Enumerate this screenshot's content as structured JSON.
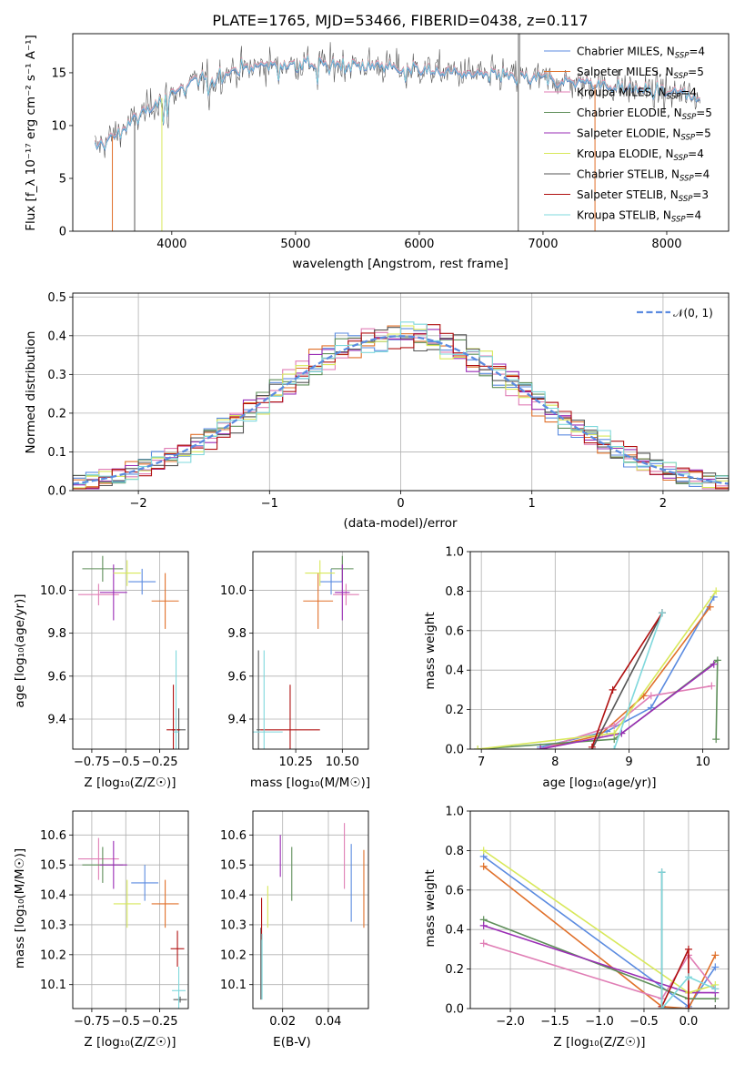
{
  "title": "PLATE=1765, MJD=53466, FIBERID=0438, z=0.117",
  "colors": {
    "Chabrier MILES": "#5b8be0",
    "Salpeter MILES": "#e0702a",
    "Kroupa MILES": "#e07eb5",
    "Chabrier ELODIE": "#5f8f5a",
    "Salpeter ELODIE": "#9a2cb5",
    "Kroupa ELODIE": "#d8e85a",
    "Chabrier STELIB": "#555555",
    "Salpeter STELIB": "#b01010",
    "Kroupa STELIB": "#7fd8dc",
    "normal": "#5b8be0",
    "grid": "#b0b0b0"
  },
  "panels": {
    "spectrum": {
      "xlabel": "wavelength [Angstrom, rest frame]",
      "ylabel": "Flux [f_λ 10⁻¹⁷ erg cm⁻² s⁻¹ A⁻¹]",
      "legend": [
        {
          "name": "Chabrier MILES, N",
          "sub": "SSP",
          "eq": "=4"
        },
        {
          "name": "Salpeter MILES, N",
          "sub": "SSP",
          "eq": "=5"
        },
        {
          "name": "Kroupa MILES, N",
          "sub": "SSP",
          "eq": "=4"
        },
        {
          "name": "Chabrier ELODIE, N",
          "sub": "SSP",
          "eq": "=5"
        },
        {
          "name": "Salpeter ELODIE, N",
          "sub": "SSP",
          "eq": "=5"
        },
        {
          "name": "Kroupa ELODIE, N",
          "sub": "SSP",
          "eq": "=4"
        },
        {
          "name": "Chabrier STELIB, N",
          "sub": "SSP",
          "eq": "=4"
        },
        {
          "name": "Salpeter STELIB, N",
          "sub": "SSP",
          "eq": "=3"
        },
        {
          "name": "Kroupa STELIB, N",
          "sub": "SSP",
          "eq": "=4"
        }
      ]
    },
    "hist": {
      "xlabel": "(data-model)/error",
      "ylabel": "Normed distribution",
      "legend_label": "𝒩(0, 1)"
    },
    "age_z": {
      "xlabel": "Z [log₁₀(Z/Z☉)]",
      "ylabel": "age  [log₁₀(age/yr)]"
    },
    "age_mass": {
      "xlabel": "mass [log₁₀(M/M☉)]"
    },
    "w_age": {
      "xlabel": "age  [log₁₀(age/yr)]",
      "ylabel": "mass weight"
    },
    "mass_z": {
      "xlabel": "Z [log₁₀(Z/Z☉)]",
      "ylabel": "mass [log₁₀(M/M☉)]"
    },
    "mass_ebv": {
      "xlabel": "E(B-V)"
    },
    "w_z": {
      "xlabel": "Z [log₁₀(Z/Z☉)]",
      "ylabel": "mass weight"
    }
  },
  "chart_data": [
    {
      "type": "line",
      "title": "PLATE=1765, MJD=53466, FIBERID=0438, z=0.117",
      "xlabel": "wavelength [Angstrom, rest frame]",
      "ylabel": "Flux [fλ 10^-17 erg cm^-2 s^-1 A^-1]",
      "xlim": [
        3200,
        8500
      ],
      "ylim": [
        0,
        18.7
      ],
      "xticks": [
        4000,
        5000,
        6000,
        7000,
        8000
      ],
      "yticks": [
        0,
        5,
        10,
        15
      ],
      "continuum": {
        "x": [
          3400,
          3700,
          3900,
          4200,
          4500,
          4800,
          5200,
          5600,
          6000,
          6500,
          7000,
          7500,
          8000,
          8250
        ],
        "y": [
          8.0,
          10.5,
          12.5,
          14.2,
          15.2,
          15.8,
          15.9,
          15.7,
          15.3,
          14.9,
          14.4,
          13.8,
          13.1,
          12.8
        ]
      },
      "series": [
        "Chabrier MILES",
        "Salpeter MILES",
        "Kroupa MILES",
        "Chabrier ELODIE",
        "Salpeter ELODIE",
        "Kroupa ELODIE",
        "Chabrier STELIB",
        "Salpeter STELIB",
        "Kroupa STELIB"
      ],
      "grid": false,
      "legend": "top-right"
    },
    {
      "type": "line",
      "xlabel": "(data-model)/error",
      "ylabel": "Normed distribution",
      "xlim": [
        -2.5,
        2.5
      ],
      "ylim": [
        0,
        0.51
      ],
      "xticks": [
        -2,
        -1,
        0,
        1,
        2
      ],
      "yticks": [
        0.0,
        0.1,
        0.2,
        0.3,
        0.4,
        0.5
      ],
      "bin_width": 0.1,
      "reference": {
        "name": "𝒩(0, 1)",
        "mean": 0,
        "sigma": 1
      },
      "grid": true,
      "legend": "top-right"
    },
    {
      "type": "scatter",
      "xlabel": "Z [log10(Z/Z_sun)]",
      "ylabel": "age [log10(age/yr)]",
      "xlim": [
        -0.89,
        -0.04
      ],
      "ylim": [
        9.26,
        10.18
      ],
      "xticks": [
        -0.75,
        -0.5,
        -0.25
      ],
      "yticks": [
        9.4,
        9.6,
        9.8,
        10.0
      ],
      "points": [
        {
          "s": "Chabrier MILES",
          "x": -0.38,
          "y": 10.04,
          "xe": 0.1,
          "ye": 0.06
        },
        {
          "s": "Salpeter MILES",
          "x": -0.21,
          "y": 9.95,
          "xe": 0.1,
          "ye": 0.13
        },
        {
          "s": "Kroupa MILES",
          "x": -0.7,
          "y": 9.98,
          "xe": 0.15,
          "ye": 0.05
        },
        {
          "s": "Chabrier ELODIE",
          "x": -0.67,
          "y": 10.1,
          "xe": 0.15,
          "ye": 0.06
        },
        {
          "s": "Salpeter ELODIE",
          "x": -0.59,
          "y": 9.99,
          "xe": 0.1,
          "ye": 0.13
        },
        {
          "s": "Kroupa ELODIE",
          "x": -0.49,
          "y": 10.08,
          "xe": 0.1,
          "ye": 0.06
        },
        {
          "s": "Chabrier STELIB",
          "x": -0.11,
          "y": 9.35,
          "xe": 0.05,
          "ye": 0.1
        },
        {
          "s": "Salpeter STELIB",
          "x": -0.15,
          "y": 9.35,
          "xe": 0.05,
          "ye": 0.21
        },
        {
          "s": "Kroupa STELIB",
          "x": -0.13,
          "y": 9.34,
          "xe": 0.02,
          "ye": 0.38
        }
      ],
      "grid": true
    },
    {
      "type": "scatter",
      "xlabel": "mass [log10(M/M_sun)]",
      "xlim": [
        10.02,
        10.64
      ],
      "ylim": [
        9.26,
        10.18
      ],
      "xticks": [
        10.25,
        10.5
      ],
      "yticks": [
        9.4,
        9.6,
        9.8,
        10.0
      ],
      "points": [
        {
          "s": "Chabrier MILES",
          "x": 10.44,
          "y": 10.04,
          "xe": 0.06,
          "ye": 0.06
        },
        {
          "s": "Salpeter MILES",
          "x": 10.37,
          "y": 9.95,
          "xe": 0.08,
          "ye": 0.13
        },
        {
          "s": "Kroupa MILES",
          "x": 10.52,
          "y": 9.98,
          "xe": 0.07,
          "ye": 0.05
        },
        {
          "s": "Chabrier ELODIE",
          "x": 10.5,
          "y": 10.1,
          "xe": 0.06,
          "ye": 0.06
        },
        {
          "s": "Salpeter ELODIE",
          "x": 10.5,
          "y": 9.99,
          "xe": 0.04,
          "ye": 0.13
        },
        {
          "s": "Kroupa ELODIE",
          "x": 10.38,
          "y": 10.08,
          "xe": 0.08,
          "ye": 0.06
        },
        {
          "s": "Chabrier STELIB",
          "x": 10.05,
          "y": 9.35,
          "xe": 0.01,
          "ye": 0.37
        },
        {
          "s": "Salpeter STELIB",
          "x": 10.22,
          "y": 9.35,
          "xe": 0.16,
          "ye": 0.21
        },
        {
          "s": "Kroupa STELIB",
          "x": 10.08,
          "y": 9.34,
          "xe": 0.1,
          "ye": 0.38
        }
      ],
      "grid": true
    },
    {
      "type": "line",
      "xlabel": "age [log10(age/yr)]",
      "ylabel": "mass weight",
      "xlim": [
        6.85,
        10.35
      ],
      "ylim": [
        0,
        1.0
      ],
      "xticks": [
        7,
        8,
        9,
        10
      ],
      "yticks": [
        0.0,
        0.2,
        0.4,
        0.6,
        0.8,
        1.0
      ],
      "series": [
        {
          "name": "Chabrier MILES",
          "x": [
            7.8,
            8.7,
            9.3,
            10.15
          ],
          "y": [
            0.01,
            0.09,
            0.21,
            0.77
          ]
        },
        {
          "name": "Salpeter MILES",
          "x": [
            7.8,
            8.6,
            9.2,
            10.1
          ],
          "y": [
            0.0,
            0.07,
            0.27,
            0.72
          ]
        },
        {
          "name": "Kroupa MILES",
          "x": [
            7.8,
            8.8,
            9.3,
            10.12
          ],
          "y": [
            0.0,
            0.12,
            0.27,
            0.32
          ]
        },
        {
          "name": "Chabrier ELODIE",
          "x": [
            6.95,
            8.8,
            10.2,
            10.18
          ],
          "y": [
            0.0,
            0.05,
            0.45,
            0.05
          ]
        },
        {
          "name": "Salpeter ELODIE",
          "x": [
            7.8,
            8.9,
            10.15
          ],
          "y": [
            0.0,
            0.08,
            0.43
          ]
        },
        {
          "name": "Kroupa ELODIE",
          "x": [
            6.95,
            8.8,
            10.18
          ],
          "y": [
            0.0,
            0.08,
            0.8
          ]
        },
        {
          "name": "Chabrier STELIB",
          "x": [
            8.5,
            9.45
          ],
          "y": [
            0.0,
            0.69
          ]
        },
        {
          "name": "Salpeter STELIB",
          "x": [
            8.5,
            8.78,
            9.45
          ],
          "y": [
            0.01,
            0.3,
            0.69
          ]
        },
        {
          "name": "Kroupa STELIB",
          "x": [
            8.8,
            9.45
          ],
          "y": [
            0.0,
            0.69
          ]
        }
      ],
      "grid": true
    },
    {
      "type": "scatter",
      "xlabel": "Z [log10(Z/Z_sun)]",
      "ylabel": "mass [log10(M/M_sun)]",
      "xlim": [
        -0.89,
        -0.04
      ],
      "ylim": [
        10.02,
        10.68
      ],
      "xticks": [
        -0.75,
        -0.5,
        -0.25
      ],
      "yticks": [
        10.1,
        10.2,
        10.3,
        10.4,
        10.5,
        10.6
      ],
      "points": [
        {
          "s": "Chabrier MILES",
          "x": -0.36,
          "y": 10.44,
          "xe": 0.1,
          "ye": 0.06
        },
        {
          "s": "Salpeter MILES",
          "x": -0.21,
          "y": 10.37,
          "xe": 0.1,
          "ye": 0.08
        },
        {
          "s": "Kroupa MILES",
          "x": -0.7,
          "y": 10.52,
          "xe": 0.15,
          "ye": 0.07
        },
        {
          "s": "Chabrier ELODIE",
          "x": -0.67,
          "y": 10.5,
          "xe": 0.15,
          "ye": 0.06
        },
        {
          "s": "Salpeter ELODIE",
          "x": -0.59,
          "y": 10.5,
          "xe": 0.1,
          "ye": 0.08
        },
        {
          "s": "Kroupa ELODIE",
          "x": -0.49,
          "y": 10.37,
          "xe": 0.1,
          "ye": 0.08
        },
        {
          "s": "Chabrier STELIB",
          "x": -0.1,
          "y": 10.05,
          "xe": 0.05,
          "ye": 0.01
        },
        {
          "s": "Salpeter STELIB",
          "x": -0.12,
          "y": 10.22,
          "xe": 0.05,
          "ye": 0.06
        },
        {
          "s": "Kroupa STELIB",
          "x": -0.11,
          "y": 10.08,
          "xe": 0.05,
          "ye": 0.08
        }
      ],
      "grid": true
    },
    {
      "type": "scatter",
      "xlabel": "E(B-V)",
      "xlim": [
        0.007,
        0.0575
      ],
      "ylim": [
        10.02,
        10.68
      ],
      "xticks": [
        0.02,
        0.04
      ],
      "yticks": [
        10.1,
        10.2,
        10.3,
        10.4,
        10.5,
        10.6
      ],
      "points": [
        {
          "s": "Chabrier MILES",
          "x": 0.05,
          "y": 10.44,
          "ye": 0.13
        },
        {
          "s": "Salpeter MILES",
          "x": 0.0555,
          "y": 10.42,
          "ye": 0.13
        },
        {
          "s": "Kroupa MILES",
          "x": 0.047,
          "y": 10.53,
          "ye": 0.11
        },
        {
          "s": "Chabrier ELODIE",
          "x": 0.024,
          "y": 10.47,
          "ye": 0.09
        },
        {
          "s": "Salpeter ELODIE",
          "x": 0.019,
          "y": 10.53,
          "ye": 0.07
        },
        {
          "s": "Kroupa ELODIE",
          "x": 0.0135,
          "y": 10.36,
          "ye": 0.07
        },
        {
          "s": "Chabrier STELIB",
          "x": 0.0105,
          "y": 10.17,
          "ye": 0.12
        },
        {
          "s": "Salpeter STELIB",
          "x": 0.0108,
          "y": 10.32,
          "ye": 0.07
        },
        {
          "s": "Kroupa STELIB",
          "x": 0.011,
          "y": 10.16,
          "ye": 0.11
        }
      ],
      "grid": true
    },
    {
      "type": "line",
      "xlabel": "Z [log10(Z/Z_sun)]",
      "ylabel": "mass weight",
      "xlim": [
        -2.45,
        0.45
      ],
      "ylim": [
        0,
        1.0
      ],
      "xticks": [
        -2.0,
        -1.5,
        -1.0,
        -0.5,
        0.0
      ],
      "yticks": [
        0.0,
        0.2,
        0.4,
        0.6,
        0.8,
        1.0
      ],
      "series": [
        {
          "name": "Chabrier MILES",
          "x": [
            -2.3,
            0.0,
            0.3
          ],
          "y": [
            0.77,
            0.01,
            0.21
          ]
        },
        {
          "name": "Salpeter MILES",
          "x": [
            -2.3,
            -0.3,
            0.0,
            0.3
          ],
          "y": [
            0.72,
            0.01,
            0.0,
            0.27
          ]
        },
        {
          "name": "Kroupa MILES",
          "x": [
            -2.3,
            -0.3,
            0.0,
            0.3
          ],
          "y": [
            0.33,
            0.05,
            0.27,
            0.1
          ]
        },
        {
          "name": "Chabrier ELODIE",
          "x": [
            -2.3,
            0.0,
            0.3
          ],
          "y": [
            0.45,
            0.05,
            0.05
          ]
        },
        {
          "name": "Salpeter ELODIE",
          "x": [
            -2.3,
            0.0,
            0.3
          ],
          "y": [
            0.42,
            0.08,
            0.08
          ]
        },
        {
          "name": "Kroupa ELODIE",
          "x": [
            -2.3,
            0.0,
            0.3
          ],
          "y": [
            0.8,
            0.08,
            0.12
          ]
        },
        {
          "name": "Chabrier STELIB",
          "x": [
            -0.3,
            -0.3,
            0.3
          ],
          "y": [
            0.69,
            0.0,
            0.0
          ]
        },
        {
          "name": "Salpeter STELIB",
          "x": [
            -0.3,
            0.0,
            0.0
          ],
          "y": [
            0.01,
            0.3,
            0.0
          ]
        },
        {
          "name": "Kroupa STELIB",
          "x": [
            -0.3,
            -0.3,
            0.0,
            0.3
          ],
          "y": [
            0.69,
            0.0,
            0.16,
            0.1
          ]
        }
      ],
      "grid": true
    }
  ]
}
